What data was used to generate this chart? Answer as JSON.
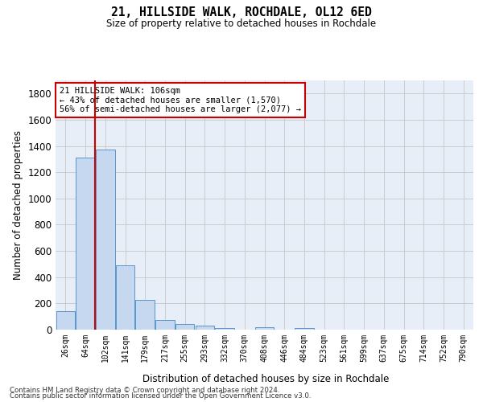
{
  "title_line1": "21, HILLSIDE WALK, ROCHDALE, OL12 6ED",
  "title_line2": "Size of property relative to detached houses in Rochdale",
  "xlabel": "Distribution of detached houses by size in Rochdale",
  "ylabel": "Number of detached properties",
  "categories": [
    "26sqm",
    "64sqm",
    "102sqm",
    "141sqm",
    "179sqm",
    "217sqm",
    "255sqm",
    "293sqm",
    "332sqm",
    "370sqm",
    "408sqm",
    "446sqm",
    "484sqm",
    "523sqm",
    "561sqm",
    "599sqm",
    "637sqm",
    "675sqm",
    "714sqm",
    "752sqm",
    "790sqm"
  ],
  "values": [
    140,
    1310,
    1370,
    490,
    225,
    75,
    45,
    30,
    15,
    0,
    20,
    0,
    15,
    0,
    0,
    0,
    0,
    0,
    0,
    0,
    0
  ],
  "bar_color": "#c5d8f0",
  "bar_edgecolor": "#5a96cc",
  "redline_x": 1.5,
  "annotation_line1": "21 HILLSIDE WALK: 106sqm",
  "annotation_line2": "← 43% of detached houses are smaller (1,570)",
  "annotation_line3": "56% of semi-detached houses are larger (2,077) →",
  "annotation_box_color": "#ffffff",
  "annotation_box_edgecolor": "#cc0000",
  "redline_color": "#cc0000",
  "ylim": [
    0,
    1900
  ],
  "yticks": [
    0,
    200,
    400,
    600,
    800,
    1000,
    1200,
    1400,
    1600,
    1800
  ],
  "grid_color": "#cccccc",
  "bg_color": "#e8eef8",
  "footnote1": "Contains HM Land Registry data © Crown copyright and database right 2024.",
  "footnote2": "Contains public sector information licensed under the Open Government Licence v3.0."
}
